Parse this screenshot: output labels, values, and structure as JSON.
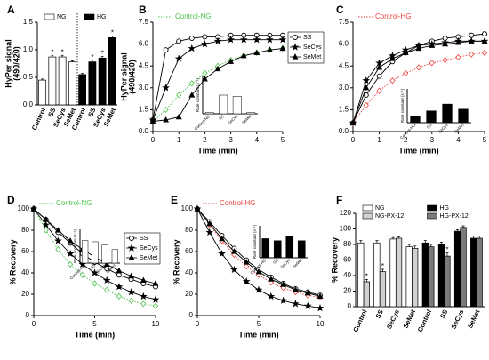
{
  "chart_data": [
    {
      "type": "bar",
      "label": "A",
      "ylabel": [
        "HyPer signal",
        "(490/420)"
      ],
      "separator": true,
      "categories": [
        "Control",
        "SS",
        "SeCys",
        "SeMet",
        "Control",
        "SS",
        "SeCys",
        "SeMet"
      ],
      "ylim": [
        0,
        1.5
      ],
      "yticks": [
        {
          "value": 0,
          "label": "0.0"
        },
        {
          "value": 0.5,
          "label": "0.5"
        },
        {
          "value": 1,
          "label": "1.0"
        },
        {
          "value": 1.5,
          "label": "1.5"
        }
      ],
      "series": [
        {
          "name": "NG",
          "color": "#ffffff",
          "values": [
            0.45,
            0.87,
            0.87,
            0.78,
            null,
            null,
            null,
            null
          ],
          "errors": [
            0.02,
            0.03,
            0.03,
            0.02,
            null,
            null,
            null,
            null
          ],
          "stars": [
            null,
            "*",
            "*",
            null,
            null,
            null,
            null,
            null
          ]
        },
        {
          "name": "HG",
          "color": "#000000",
          "values": [
            null,
            null,
            null,
            null,
            0.55,
            0.78,
            0.85,
            1.22
          ],
          "errors": [
            null,
            null,
            null,
            null,
            0.02,
            0.03,
            0.03,
            0.03
          ],
          "stars": [
            null,
            null,
            null,
            null,
            null,
            "*",
            "*",
            "*"
          ]
        }
      ]
    },
    {
      "type": "line",
      "label": "B",
      "ylabel": [
        "HyPer signal",
        "(490/420)"
      ],
      "xlabel": "Time (min)",
      "legend": "box",
      "x": [
        0,
        0.5,
        1,
        1.5,
        2,
        2.5,
        3,
        3.5,
        4,
        4.5,
        5
      ],
      "xlim": [
        0,
        5
      ],
      "xticks": [
        0,
        1,
        2,
        3,
        4,
        5
      ],
      "ylim": [
        0,
        7.5
      ],
      "yticks": [
        {
          "value": 0,
          "label": "0.0"
        },
        {
          "value": 1.5,
          "label": "1.5"
        },
        {
          "value": 3,
          "label": "3.0"
        },
        {
          "value": 4.5,
          "label": "4.5"
        },
        {
          "value": 6,
          "label": "6.0"
        },
        {
          "value": 7.5,
          "label": "7.5"
        }
      ],
      "series": [
        {
          "name": "Control-NG",
          "color": "#4cc24c",
          "marker": "diamond",
          "dash": "dotted",
          "values": [
            0.7,
            1.5,
            2.5,
            3.3,
            4.0,
            4.5,
            4.9,
            5.2,
            5.4,
            5.6,
            5.7
          ]
        },
        {
          "name": "SS",
          "color": "#000000",
          "marker": "circle",
          "dash": "solid",
          "values": [
            0.8,
            5.6,
            6.2,
            6.4,
            6.5,
            6.5,
            6.6,
            6.6,
            6.6,
            6.6,
            6.6
          ]
        },
        {
          "name": "SeCys",
          "color": "#000000",
          "marker": "star",
          "dash": "solid",
          "values": [
            0.8,
            3.0,
            5.0,
            5.7,
            6.0,
            6.2,
            6.3,
            6.3,
            6.3,
            6.3,
            6.3
          ]
        },
        {
          "name": "SeMet",
          "color": "#000000",
          "marker": "triangle",
          "dash": "solid",
          "values": [
            0.7,
            0.8,
            1.0,
            2.5,
            3.6,
            4.3,
            4.8,
            5.2,
            5.4,
            5.6,
            5.7
          ]
        }
      ],
      "inset": {
        "ylabel": "Rate constant (s⁻¹)",
        "categories": [
          "Control-NG",
          "SS",
          "SeCys",
          "SeMet"
        ],
        "values": [
          0.1,
          1.5,
          1.4,
          0.1
        ],
        "ylim": [
          0,
          3
        ],
        "color": "#ffffff"
      }
    },
    {
      "type": "line",
      "label": "C",
      "xlabel": "Time (min)",
      "legend": "none",
      "x": [
        0,
        0.5,
        1,
        1.5,
        2,
        2.5,
        3,
        3.5,
        4,
        4.5,
        5
      ],
      "xlim": [
        0,
        5
      ],
      "xticks": [
        0,
        1,
        2,
        3,
        4,
        5
      ],
      "ylim": [
        0,
        7.5
      ],
      "yticks": [
        {
          "value": 0,
          "label": "0.0"
        },
        {
          "value": 1.5,
          "label": "1.5"
        },
        {
          "value": 3,
          "label": "3.0"
        },
        {
          "value": 4.5,
          "label": "4.5"
        },
        {
          "value": 6,
          "label": "6.0"
        },
        {
          "value": 7.5,
          "label": "7.5"
        }
      ],
      "series": [
        {
          "name": "Control-HG",
          "color": "#e8413c",
          "marker": "diamond",
          "dash": "dotted",
          "values": [
            0.6,
            1.8,
            2.8,
            3.5,
            4.0,
            4.4,
            4.7,
            4.9,
            5.1,
            5.3,
            5.4
          ]
        },
        {
          "name": "SS",
          "color": "#000000",
          "marker": "circle",
          "dash": "solid",
          "values": [
            0.6,
            2.5,
            3.8,
            4.8,
            5.4,
            5.9,
            6.2,
            6.4,
            6.5,
            6.6,
            6.7
          ]
        },
        {
          "name": "SeCys",
          "color": "#000000",
          "marker": "star",
          "dash": "solid",
          "values": [
            0.6,
            3.5,
            4.7,
            5.2,
            5.6,
            5.9,
            6.0,
            6.1,
            6.2,
            6.2,
            6.2
          ]
        },
        {
          "name": "SeMet",
          "color": "#000000",
          "marker": "triangle",
          "dash": "solid",
          "values": [
            0.6,
            3.0,
            4.4,
            5.0,
            5.4,
            5.7,
            5.9,
            6.0,
            6.1,
            6.2,
            6.2
          ]
        }
      ],
      "inset": {
        "ylabel": "Rate constant (s⁻¹)",
        "categories": [
          "Control-HG",
          "SS",
          "SeCys",
          "SeMet"
        ],
        "values": [
          0.4,
          0.7,
          1.1,
          0.8
        ],
        "ylim": [
          0,
          2
        ],
        "color": "#000000"
      }
    },
    {
      "type": "line",
      "label": "D",
      "ylabel": [
        "% Recovery"
      ],
      "xlabel": "Time (min)",
      "legend": "box",
      "x": [
        0,
        1,
        2,
        3,
        4,
        5,
        6,
        7,
        8,
        9,
        10
      ],
      "xlim": [
        0,
        10
      ],
      "xticks": [
        0,
        5,
        10
      ],
      "ylim": [
        0,
        100
      ],
      "yticks": [
        0,
        20,
        40,
        60,
        80,
        100
      ],
      "series": [
        {
          "name": "Control-NG",
          "color": "#4cc24c",
          "marker": "diamond",
          "dash": "dotted",
          "values": [
            100,
            80,
            62,
            48,
            38,
            30,
            24,
            18,
            14,
            11,
            9
          ]
        },
        {
          "name": "SS",
          "color": "#000000",
          "marker": "circle",
          "dash": "solid",
          "values": [
            100,
            90,
            78,
            68,
            58,
            50,
            44,
            38,
            34,
            30,
            27
          ]
        },
        {
          "name": "SeCys",
          "color": "#000000",
          "marker": "star",
          "dash": "solid",
          "values": [
            100,
            85,
            70,
            58,
            48,
            40,
            33,
            27,
            22,
            18,
            15
          ]
        },
        {
          "name": "SeMet",
          "color": "#000000",
          "marker": "triangle",
          "dash": "solid",
          "values": [
            100,
            90,
            80,
            70,
            62,
            55,
            48,
            42,
            37,
            33,
            30
          ]
        }
      ],
      "inset": {
        "ylabel": "Rate constant (s⁻¹)",
        "categories": [
          "Control-NG",
          "SS",
          "SeCys",
          "SeMet"
        ],
        "values": [
          1.0,
          0.95,
          0.8,
          0.6
        ],
        "ylim": [
          0,
          1.5
        ],
        "color": "#ffffff"
      }
    },
    {
      "type": "line",
      "label": "E",
      "ylabel": [
        "% Recovery"
      ],
      "xlabel": "Time (min)",
      "legend": "none",
      "x": [
        0,
        1,
        2,
        3,
        4,
        5,
        6,
        7,
        8,
        9,
        10
      ],
      "xlim": [
        0,
        10
      ],
      "xticks": [
        0,
        5,
        10
      ],
      "ylim": [
        0,
        100
      ],
      "yticks": [
        0,
        20,
        40,
        60,
        80,
        100
      ],
      "series": [
        {
          "name": "Control-HG",
          "color": "#e8413c",
          "marker": "diamond",
          "dash": "dotted",
          "values": [
            100,
            85,
            70,
            57,
            46,
            38,
            31,
            26,
            22,
            19,
            17
          ]
        },
        {
          "name": "SS",
          "color": "#000000",
          "marker": "circle",
          "dash": "solid",
          "values": [
            100,
            88,
            75,
            63,
            52,
            43,
            36,
            30,
            25,
            22,
            19
          ]
        },
        {
          "name": "SeCys",
          "color": "#000000",
          "marker": "star",
          "dash": "solid",
          "values": [
            100,
            78,
            58,
            43,
            32,
            24,
            18,
            14,
            11,
            9,
            7
          ]
        },
        {
          "name": "SeMet",
          "color": "#000000",
          "marker": "triangle",
          "dash": "solid",
          "values": [
            100,
            86,
            72,
            60,
            50,
            41,
            34,
            29,
            24,
            21,
            18
          ]
        }
      ],
      "inset": {
        "ylabel": "Rate constant (s⁻¹)",
        "categories": [
          "Control-HG",
          "SS",
          "SeCys",
          "SeMet"
        ],
        "values": [
          0.9,
          0.8,
          1.0,
          0.8
        ],
        "ylim": [
          0,
          1.5
        ],
        "color": "#000000"
      }
    },
    {
      "type": "bar",
      "label": "F",
      "ylabel": [
        "% Recovery"
      ],
      "categories": [
        "Control",
        "SS",
        "SeCys",
        "SeMet",
        "Control",
        "SS",
        "SeCys",
        "SeMet"
      ],
      "ylim": [
        0,
        120
      ],
      "yticks": [
        0,
        20,
        40,
        60,
        80,
        100,
        120
      ],
      "series": [
        {
          "name": "NG",
          "color": "#ffffff",
          "values": [
            82,
            82,
            87,
            77,
            null,
            null,
            null,
            null
          ],
          "errors": [
            3,
            3,
            2,
            3,
            null,
            null,
            null,
            null
          ],
          "stars": [
            null,
            null,
            null,
            null,
            null,
            null,
            null,
            null
          ]
        },
        {
          "name": "NG-PX-12",
          "color": "#d0d0d0",
          "values": [
            32,
            45,
            88,
            75,
            null,
            null,
            null,
            null
          ],
          "errors": [
            3,
            3,
            2,
            3,
            null,
            null,
            null,
            null
          ],
          "stars": [
            "*",
            "*",
            null,
            null,
            null,
            null,
            null,
            null
          ]
        },
        {
          "name": "HG",
          "color": "#000000",
          "values": [
            null,
            null,
            null,
            null,
            82,
            80,
            97,
            88
          ],
          "errors": [
            null,
            null,
            null,
            null,
            3,
            3,
            2,
            3
          ],
          "stars": [
            null,
            null,
            null,
            null,
            null,
            null,
            null,
            null
          ]
        },
        {
          "name": "HG-PX-12",
          "color": "#7a7a7a",
          "values": [
            null,
            null,
            null,
            null,
            77,
            65,
            102,
            88
          ],
          "errors": [
            null,
            null,
            null,
            null,
            3,
            4,
            2,
            3
          ],
          "stars": [
            null,
            null,
            null,
            null,
            null,
            "*",
            null,
            null
          ]
        }
      ]
    }
  ]
}
